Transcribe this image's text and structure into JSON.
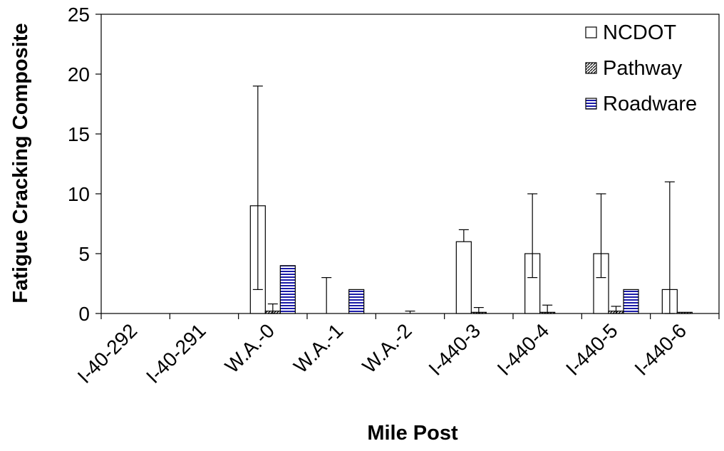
{
  "chart_data": {
    "type": "bar",
    "title": "",
    "xlabel": "Mile Post",
    "ylabel": "Fatigue Cracking Composite",
    "ylim": [
      0,
      25
    ],
    "yticks": [
      0,
      5,
      10,
      15,
      20,
      25
    ],
    "grid": false,
    "legend_position": "top-right",
    "categories": [
      "I-40-292",
      "I-40-291",
      "W.A.-0",
      "W.A.-1",
      "W.A.-2",
      "I-440-3",
      "I-440-4",
      "I-440-5",
      "I-440-6"
    ],
    "series": [
      {
        "name": "NCDOT",
        "pattern": "open",
        "color": "#000000",
        "values": [
          0,
          0,
          9,
          0,
          0,
          6,
          5,
          5,
          2
        ],
        "error_low": [
          0,
          0,
          2,
          0,
          0,
          6,
          3,
          3,
          0
        ],
        "error_high": [
          0,
          0,
          19,
          3,
          0,
          7,
          10,
          10,
          11
        ]
      },
      {
        "name": "Pathway",
        "pattern": "diagonal-hatch",
        "color": "#000000",
        "values": [
          0,
          0,
          0.2,
          0,
          0,
          0.1,
          0.1,
          0.2,
          0.1
        ],
        "error_low": [
          0,
          0,
          0,
          0,
          0,
          0,
          0,
          0,
          0
        ],
        "error_high": [
          0,
          0,
          0.8,
          0,
          0.2,
          0.5,
          0.7,
          0.6,
          0.1
        ]
      },
      {
        "name": "Roadware",
        "pattern": "horizontal-stripes",
        "color": "#1a1aa8",
        "values": [
          0,
          0,
          4,
          2,
          0,
          0,
          0,
          2,
          0
        ],
        "error_low": [
          0,
          0,
          4,
          2,
          0,
          0,
          0,
          2,
          0
        ],
        "error_high": [
          0,
          0,
          4,
          2,
          0,
          0,
          0,
          2,
          0
        ]
      }
    ]
  }
}
